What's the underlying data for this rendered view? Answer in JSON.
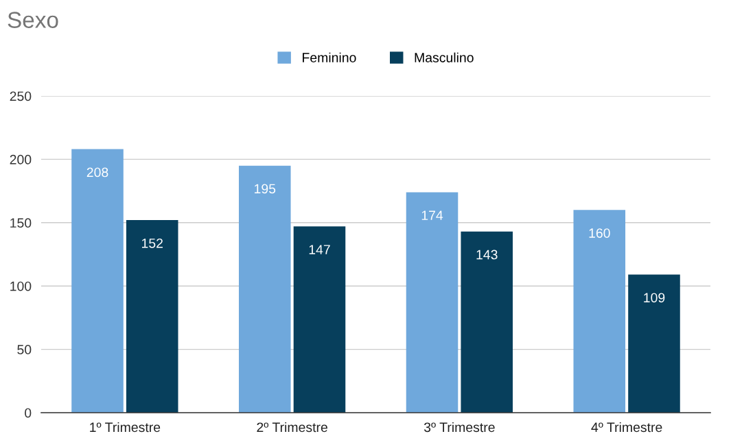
{
  "chart_data": {
    "type": "bar",
    "title": "Sexo",
    "categories": [
      "1º Trimestre",
      "2º Trimestre",
      "3º Trimestre",
      "4º Trimestre"
    ],
    "series": [
      {
        "name": "Feminino",
        "color": "#6fa8dc",
        "values": [
          208,
          195,
          174,
          160
        ]
      },
      {
        "name": "Masculino",
        "color": "#073f5c",
        "values": [
          152,
          147,
          143,
          109
        ]
      }
    ],
    "ylim": [
      0,
      250
    ],
    "yticks": [
      0,
      50,
      100,
      150,
      200,
      250
    ],
    "grid": "y",
    "legend": "top",
    "data_labels": true
  }
}
